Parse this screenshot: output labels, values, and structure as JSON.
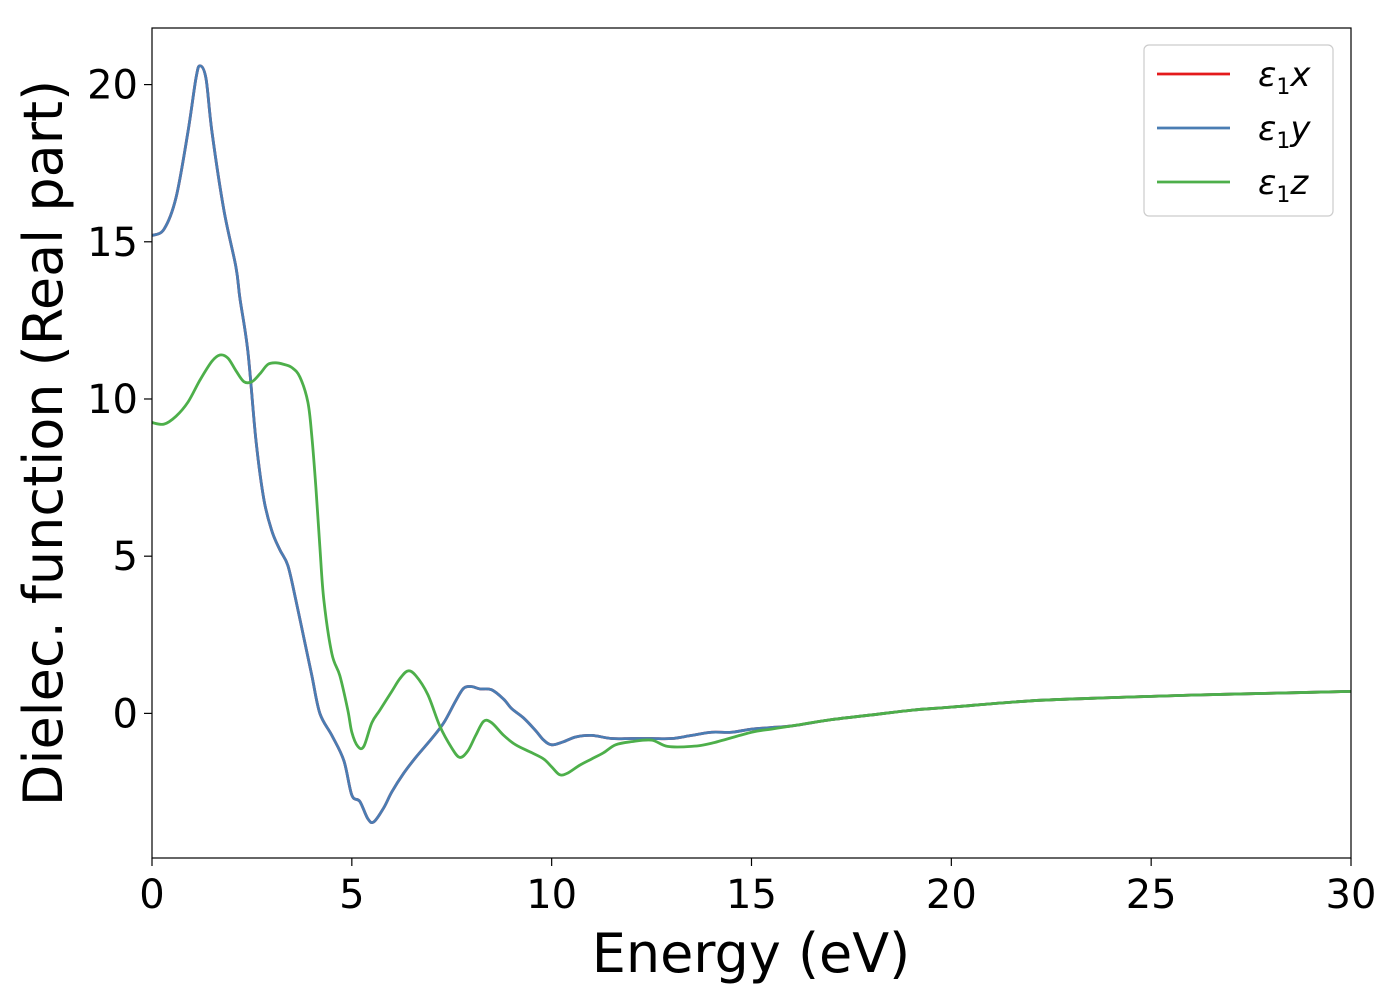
{
  "chart_data": {
    "type": "line",
    "xlabel": "Energy (eV)",
    "ylabel": "Dielec. function (Real part)",
    "xlim": [
      0,
      30
    ],
    "ylim": [
      -4.6,
      21.8
    ],
    "xticks": [
      0,
      5,
      10,
      15,
      20,
      25,
      30
    ],
    "yticks": [
      0,
      5,
      10,
      15,
      20
    ],
    "grid": false,
    "legend_position": "top-right",
    "series": [
      {
        "name": "ε1x",
        "legend_main": "ε",
        "legend_sub": "1",
        "legend_var": "x",
        "color": "#e41a1c",
        "points": [
          [
            0,
            15.2
          ],
          [
            0.3,
            15.4
          ],
          [
            0.6,
            16.4
          ],
          [
            0.9,
            18.5
          ],
          [
            1.1,
            20.2
          ],
          [
            1.2,
            20.6
          ],
          [
            1.35,
            20.2
          ],
          [
            1.5,
            18.5
          ],
          [
            1.8,
            16.0
          ],
          [
            2.1,
            14.2
          ],
          [
            2.2,
            13.2
          ],
          [
            2.4,
            11.5
          ],
          [
            2.6,
            8.7
          ],
          [
            2.8,
            6.8
          ],
          [
            3.0,
            5.8
          ],
          [
            3.2,
            5.2
          ],
          [
            3.4,
            4.7
          ],
          [
            3.6,
            3.6
          ],
          [
            3.8,
            2.4
          ],
          [
            4.0,
            1.2
          ],
          [
            4.2,
            0.0
          ],
          [
            4.5,
            -0.7
          ],
          [
            4.8,
            -1.5
          ],
          [
            5.0,
            -2.6
          ],
          [
            5.2,
            -2.8
          ],
          [
            5.4,
            -3.35
          ],
          [
            5.55,
            -3.45
          ],
          [
            5.8,
            -3.0
          ],
          [
            6.0,
            -2.5
          ],
          [
            6.3,
            -1.9
          ],
          [
            6.6,
            -1.4
          ],
          [
            7.0,
            -0.8
          ],
          [
            7.3,
            -0.3
          ],
          [
            7.6,
            0.4
          ],
          [
            7.8,
            0.8
          ],
          [
            8.0,
            0.85
          ],
          [
            8.2,
            0.78
          ],
          [
            8.5,
            0.75
          ],
          [
            8.8,
            0.45
          ],
          [
            9.0,
            0.15
          ],
          [
            9.3,
            -0.15
          ],
          [
            9.6,
            -0.55
          ],
          [
            9.8,
            -0.85
          ],
          [
            10.0,
            -1.0
          ],
          [
            10.3,
            -0.9
          ],
          [
            10.6,
            -0.75
          ],
          [
            11.0,
            -0.7
          ],
          [
            11.5,
            -0.8
          ],
          [
            12.0,
            -0.8
          ],
          [
            12.5,
            -0.8
          ],
          [
            13.0,
            -0.8
          ],
          [
            13.5,
            -0.7
          ],
          [
            14.0,
            -0.6
          ],
          [
            14.5,
            -0.6
          ],
          [
            15.0,
            -0.5
          ],
          [
            15.5,
            -0.45
          ],
          [
            16.0,
            -0.4
          ],
          [
            17.0,
            -0.2
          ],
          [
            18.0,
            -0.05
          ],
          [
            19.0,
            0.1
          ],
          [
            20.0,
            0.2
          ],
          [
            22.0,
            0.4
          ],
          [
            24.0,
            0.5
          ],
          [
            26.0,
            0.58
          ],
          [
            28.0,
            0.64
          ],
          [
            30.0,
            0.7
          ]
        ]
      },
      {
        "name": "ε1y",
        "legend_main": "ε",
        "legend_sub": "1",
        "legend_var": "y",
        "color": "#4a7db3",
        "points": [
          [
            0,
            15.2
          ],
          [
            0.3,
            15.4
          ],
          [
            0.6,
            16.4
          ],
          [
            0.9,
            18.5
          ],
          [
            1.1,
            20.2
          ],
          [
            1.2,
            20.6
          ],
          [
            1.35,
            20.2
          ],
          [
            1.5,
            18.5
          ],
          [
            1.8,
            16.0
          ],
          [
            2.1,
            14.2
          ],
          [
            2.2,
            13.2
          ],
          [
            2.4,
            11.5
          ],
          [
            2.6,
            8.7
          ],
          [
            2.8,
            6.8
          ],
          [
            3.0,
            5.8
          ],
          [
            3.2,
            5.2
          ],
          [
            3.4,
            4.7
          ],
          [
            3.6,
            3.6
          ],
          [
            3.8,
            2.4
          ],
          [
            4.0,
            1.2
          ],
          [
            4.2,
            0.0
          ],
          [
            4.5,
            -0.7
          ],
          [
            4.8,
            -1.5
          ],
          [
            5.0,
            -2.6
          ],
          [
            5.2,
            -2.8
          ],
          [
            5.4,
            -3.35
          ],
          [
            5.55,
            -3.45
          ],
          [
            5.8,
            -3.0
          ],
          [
            6.0,
            -2.5
          ],
          [
            6.3,
            -1.9
          ],
          [
            6.6,
            -1.4
          ],
          [
            7.0,
            -0.8
          ],
          [
            7.3,
            -0.3
          ],
          [
            7.6,
            0.4
          ],
          [
            7.8,
            0.8
          ],
          [
            8.0,
            0.85
          ],
          [
            8.2,
            0.78
          ],
          [
            8.5,
            0.75
          ],
          [
            8.8,
            0.45
          ],
          [
            9.0,
            0.15
          ],
          [
            9.3,
            -0.15
          ],
          [
            9.6,
            -0.55
          ],
          [
            9.8,
            -0.85
          ],
          [
            10.0,
            -1.0
          ],
          [
            10.3,
            -0.9
          ],
          [
            10.6,
            -0.75
          ],
          [
            11.0,
            -0.7
          ],
          [
            11.5,
            -0.8
          ],
          [
            12.0,
            -0.8
          ],
          [
            12.5,
            -0.8
          ],
          [
            13.0,
            -0.8
          ],
          [
            13.5,
            -0.7
          ],
          [
            14.0,
            -0.6
          ],
          [
            14.5,
            -0.6
          ],
          [
            15.0,
            -0.5
          ],
          [
            15.5,
            -0.45
          ],
          [
            16.0,
            -0.4
          ],
          [
            17.0,
            -0.2
          ],
          [
            18.0,
            -0.05
          ],
          [
            19.0,
            0.1
          ],
          [
            20.0,
            0.2
          ],
          [
            22.0,
            0.4
          ],
          [
            24.0,
            0.5
          ],
          [
            26.0,
            0.58
          ],
          [
            28.0,
            0.64
          ],
          [
            30.0,
            0.7
          ]
        ]
      },
      {
        "name": "ε1z",
        "legend_main": "ε",
        "legend_sub": "1",
        "legend_var": "z",
        "color": "#4daf4a",
        "points": [
          [
            0,
            9.25
          ],
          [
            0.3,
            9.2
          ],
          [
            0.6,
            9.45
          ],
          [
            0.9,
            9.9
          ],
          [
            1.2,
            10.6
          ],
          [
            1.5,
            11.2
          ],
          [
            1.7,
            11.4
          ],
          [
            1.9,
            11.3
          ],
          [
            2.1,
            10.9
          ],
          [
            2.3,
            10.55
          ],
          [
            2.5,
            10.55
          ],
          [
            2.7,
            10.8
          ],
          [
            2.9,
            11.1
          ],
          [
            3.1,
            11.15
          ],
          [
            3.3,
            11.1
          ],
          [
            3.5,
            11.0
          ],
          [
            3.7,
            10.7
          ],
          [
            3.9,
            9.9
          ],
          [
            4.0,
            8.8
          ],
          [
            4.1,
            7.2
          ],
          [
            4.2,
            5.3
          ],
          [
            4.3,
            3.6
          ],
          [
            4.5,
            1.9
          ],
          [
            4.7,
            1.2
          ],
          [
            4.9,
            0.1
          ],
          [
            5.0,
            -0.6
          ],
          [
            5.15,
            -1.05
          ],
          [
            5.3,
            -1.05
          ],
          [
            5.5,
            -0.3
          ],
          [
            5.7,
            0.1
          ],
          [
            6.0,
            0.7
          ],
          [
            6.2,
            1.1
          ],
          [
            6.4,
            1.35
          ],
          [
            6.6,
            1.2
          ],
          [
            6.9,
            0.6
          ],
          [
            7.2,
            -0.4
          ],
          [
            7.5,
            -1.1
          ],
          [
            7.7,
            -1.4
          ],
          [
            7.9,
            -1.2
          ],
          [
            8.1,
            -0.7
          ],
          [
            8.3,
            -0.25
          ],
          [
            8.5,
            -0.3
          ],
          [
            8.8,
            -0.7
          ],
          [
            9.1,
            -1.0
          ],
          [
            9.5,
            -1.25
          ],
          [
            9.8,
            -1.45
          ],
          [
            10.0,
            -1.7
          ],
          [
            10.2,
            -1.95
          ],
          [
            10.4,
            -1.9
          ],
          [
            10.7,
            -1.65
          ],
          [
            11.0,
            -1.45
          ],
          [
            11.3,
            -1.25
          ],
          [
            11.6,
            -1.0
          ],
          [
            12.0,
            -0.9
          ],
          [
            12.5,
            -0.85
          ],
          [
            12.9,
            -1.05
          ],
          [
            13.5,
            -1.05
          ],
          [
            14.0,
            -0.95
          ],
          [
            15.0,
            -0.6
          ],
          [
            15.5,
            -0.5
          ],
          [
            16.0,
            -0.4
          ],
          [
            17.0,
            -0.2
          ],
          [
            18.0,
            -0.05
          ],
          [
            19.0,
            0.1
          ],
          [
            20.0,
            0.2
          ],
          [
            22.0,
            0.4
          ],
          [
            24.0,
            0.5
          ],
          [
            26.0,
            0.58
          ],
          [
            28.0,
            0.64
          ],
          [
            30.0,
            0.7
          ]
        ]
      }
    ]
  }
}
